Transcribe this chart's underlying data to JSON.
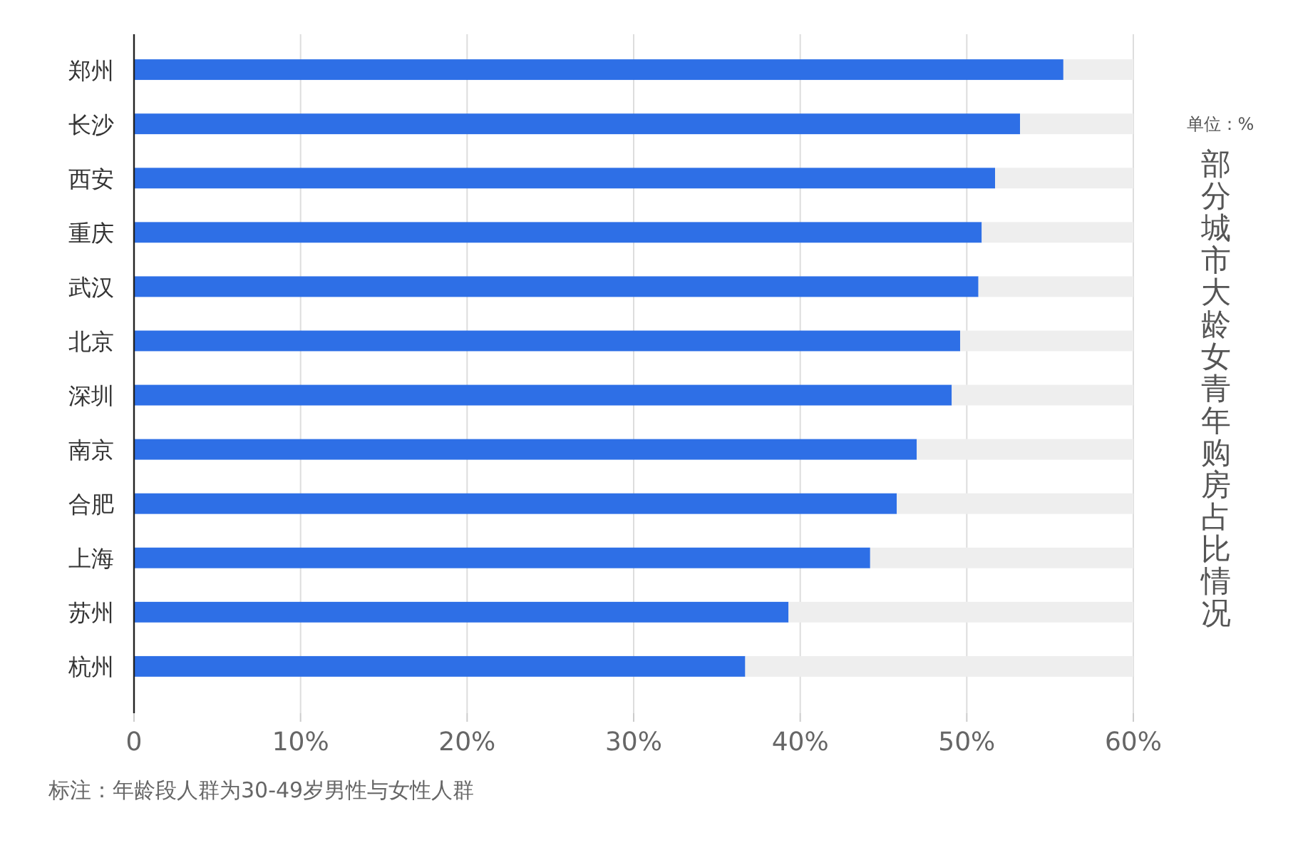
{
  "chart_data": {
    "type": "bar",
    "orientation": "horizontal",
    "stacked": true,
    "title": "部分城市大龄女青年购房占比情况",
    "subtitle": "单位：%",
    "annotations": [
      "标注：年龄段人群为30-49岁男性与女性人群"
    ],
    "categories": [
      "郑州",
      "长沙",
      "西安",
      "重庆",
      "武汉",
      "北京",
      "深圳",
      "南京",
      "合肥",
      "上海",
      "苏州",
      "杭州"
    ],
    "series": [
      {
        "color": "#2e6fe6",
        "values": [
          55.8,
          53.2,
          51.7,
          50.9,
          50.7,
          49.6,
          49.1,
          47.0,
          45.8,
          44.2,
          39.3,
          36.7
        ]
      },
      {
        "color": "#eeeeee",
        "values": [
          4.2,
          6.8,
          8.3,
          9.1,
          9.3,
          10.4,
          10.9,
          13.0,
          14.2,
          15.8,
          20.7,
          23.3
        ]
      }
    ],
    "xlim": [
      0,
      60
    ],
    "xticks": [
      {
        "value": 0,
        "label": "0"
      },
      {
        "value": 10,
        "label": "10%"
      },
      {
        "value": 20,
        "label": "20%"
      },
      {
        "value": 30,
        "label": "30%"
      },
      {
        "value": 40,
        "label": "40%"
      },
      {
        "value": 50,
        "label": "50%"
      },
      {
        "value": 60,
        "label": "60%"
      }
    ],
    "grid": "x"
  }
}
